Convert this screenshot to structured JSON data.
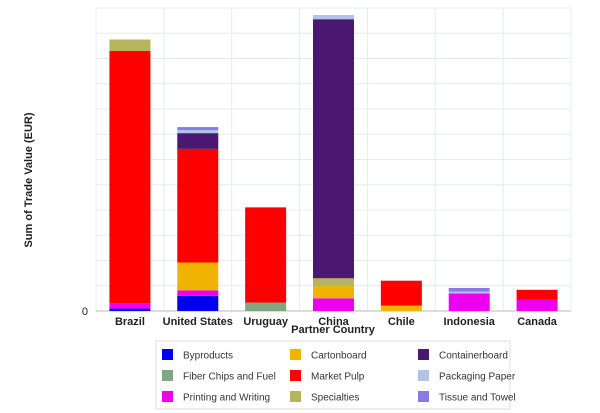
{
  "chart_data": {
    "type": "bar",
    "stacked": true,
    "categories": [
      "Brazil",
      "United States",
      "Uruguay",
      "China",
      "Chile",
      "Indonesia",
      "Canada"
    ],
    "xlabel": "Partner Country",
    "ylabel": "Sum of Trade Value (EUR)",
    "y_ticks": [
      "0"
    ],
    "ylim": [
      0,
      100
    ],
    "grid": true,
    "legend_position": "bottom",
    "series": [
      {
        "name": "Byproducts",
        "color": "#0000ee",
        "values": [
          0.8,
          5.0,
          0,
          0,
          0,
          0,
          0
        ]
      },
      {
        "name": "Fiber Chips and Fuel",
        "color": "#80a880",
        "values": [
          0,
          0,
          2.8,
          0,
          0,
          0,
          0
        ]
      },
      {
        "name": "Printing and Writing",
        "color": "#ee00ee",
        "values": [
          1.8,
          1.8,
          0,
          4.2,
          0,
          5.8,
          3.8
        ]
      },
      {
        "name": "Cartonboard",
        "color": "#f0b400",
        "values": [
          0,
          9.2,
          0,
          4.0,
          1.8,
          0,
          0
        ]
      },
      {
        "name": "Market Pulp",
        "color": "#ff0000",
        "values": [
          83.2,
          37.5,
          31.4,
          0,
          8.2,
          0,
          3.2
        ]
      },
      {
        "name": "Specialties",
        "color": "#b8b45c",
        "values": [
          3.8,
          0,
          0,
          2.6,
          0,
          0,
          0
        ]
      },
      {
        "name": "Containerboard",
        "color": "#4a1870",
        "values": [
          0,
          5.2,
          0,
          85.5,
          0,
          0,
          0
        ]
      },
      {
        "name": "Packaging Paper",
        "color": "#b0c4e8",
        "values": [
          0,
          1.0,
          0,
          1.4,
          0,
          0.6,
          0
        ]
      },
      {
        "name": "Tissue and Towel",
        "color": "#8a7ae8",
        "values": [
          0,
          1.0,
          0,
          0,
          0,
          1.2,
          0
        ]
      }
    ]
  },
  "legend": {
    "items": [
      {
        "name": "Byproducts",
        "color": "#0000ee"
      },
      {
        "name": "Cartonboard",
        "color": "#f0b400"
      },
      {
        "name": "Containerboard",
        "color": "#4a1870"
      },
      {
        "name": "Fiber Chips and Fuel",
        "color": "#80a880"
      },
      {
        "name": "Market Pulp",
        "color": "#ff0000"
      },
      {
        "name": "Packaging Paper",
        "color": "#b0c4e8"
      },
      {
        "name": "Printing and Writing",
        "color": "#ee00ee"
      },
      {
        "name": "Specialties",
        "color": "#b8b45c"
      },
      {
        "name": "Tissue and Towel",
        "color": "#8a7ae8"
      }
    ]
  }
}
